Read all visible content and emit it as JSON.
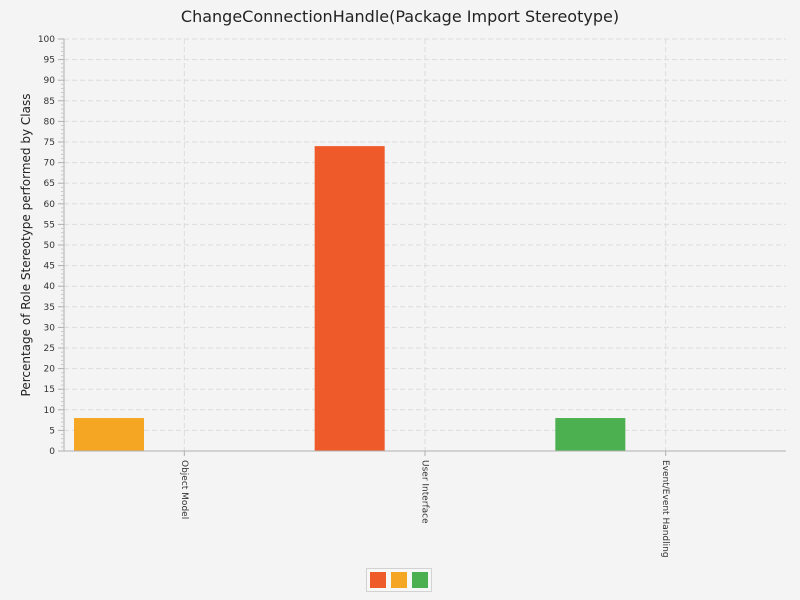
{
  "chart_data": {
    "type": "bar",
    "title": "ChangeConnectionHandle(Package Import Stereotype)",
    "xlabel": "",
    "ylabel": "Percentage of Role Stereotype performed by Class",
    "categories": [
      "Object Model",
      "User Interface",
      "Event/Event Handling"
    ],
    "series": [
      {
        "values": [
          8,
          74,
          8
        ]
      }
    ],
    "bar_colors": [
      "#f5a623",
      "#ef5a2a",
      "#4caf50"
    ],
    "ylim": [
      0,
      100
    ],
    "y_major_step": 5,
    "grid": true,
    "legend": {
      "position": "bottom",
      "swatch_colors": [
        "#ef5a2a",
        "#f5a623",
        "#4caf50"
      ]
    }
  }
}
